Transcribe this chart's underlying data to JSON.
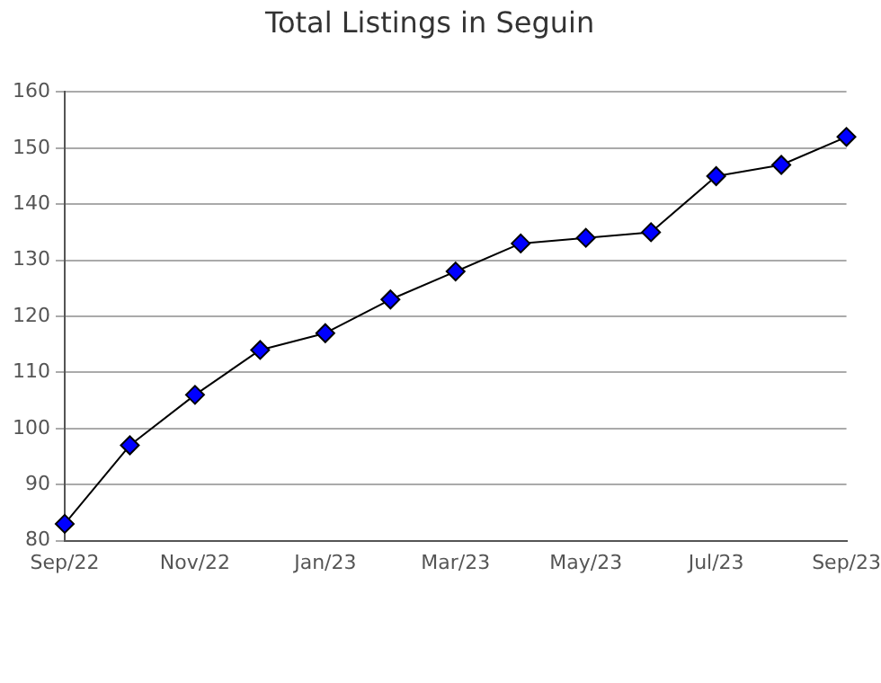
{
  "chart_data": {
    "type": "line",
    "title": "Total Listings in Seguin",
    "categories": [
      "Sep/22",
      null,
      "Nov/22",
      null,
      "Jan/23",
      null,
      "Mar/23",
      null,
      "May/23",
      null,
      "Jul/23",
      null,
      "Sep/23"
    ],
    "series": [
      {
        "color": "#0000ff",
        "values": [
          83,
          97,
          106,
          114,
          117,
          123,
          128,
          133,
          134,
          135,
          145,
          147,
          152
        ]
      }
    ],
    "ylim": [
      80,
      160
    ],
    "yticks": [
      80,
      90,
      100,
      110,
      120,
      130,
      140,
      150,
      160
    ],
    "grid": "y",
    "legend": false,
    "marker": "diamond",
    "line_style": "solid"
  }
}
